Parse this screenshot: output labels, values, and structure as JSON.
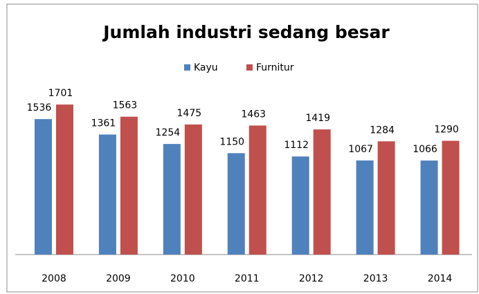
{
  "chart_data": {
    "type": "bar",
    "title": "Jumlah industri sedang besar",
    "categories": [
      "2008",
      "2009",
      "2010",
      "2011",
      "2012",
      "2013",
      "2014"
    ],
    "series": [
      {
        "name": "Kayu",
        "color": "#4f81bd",
        "values": [
          1536,
          1361,
          1254,
          1150,
          1112,
          1067,
          1066
        ]
      },
      {
        "name": "Furnitur",
        "color": "#c0504d",
        "values": [
          1701,
          1563,
          1475,
          1463,
          1419,
          1284,
          1290
        ]
      }
    ],
    "ylim": [
      0,
      2000
    ],
    "legend": "top"
  }
}
